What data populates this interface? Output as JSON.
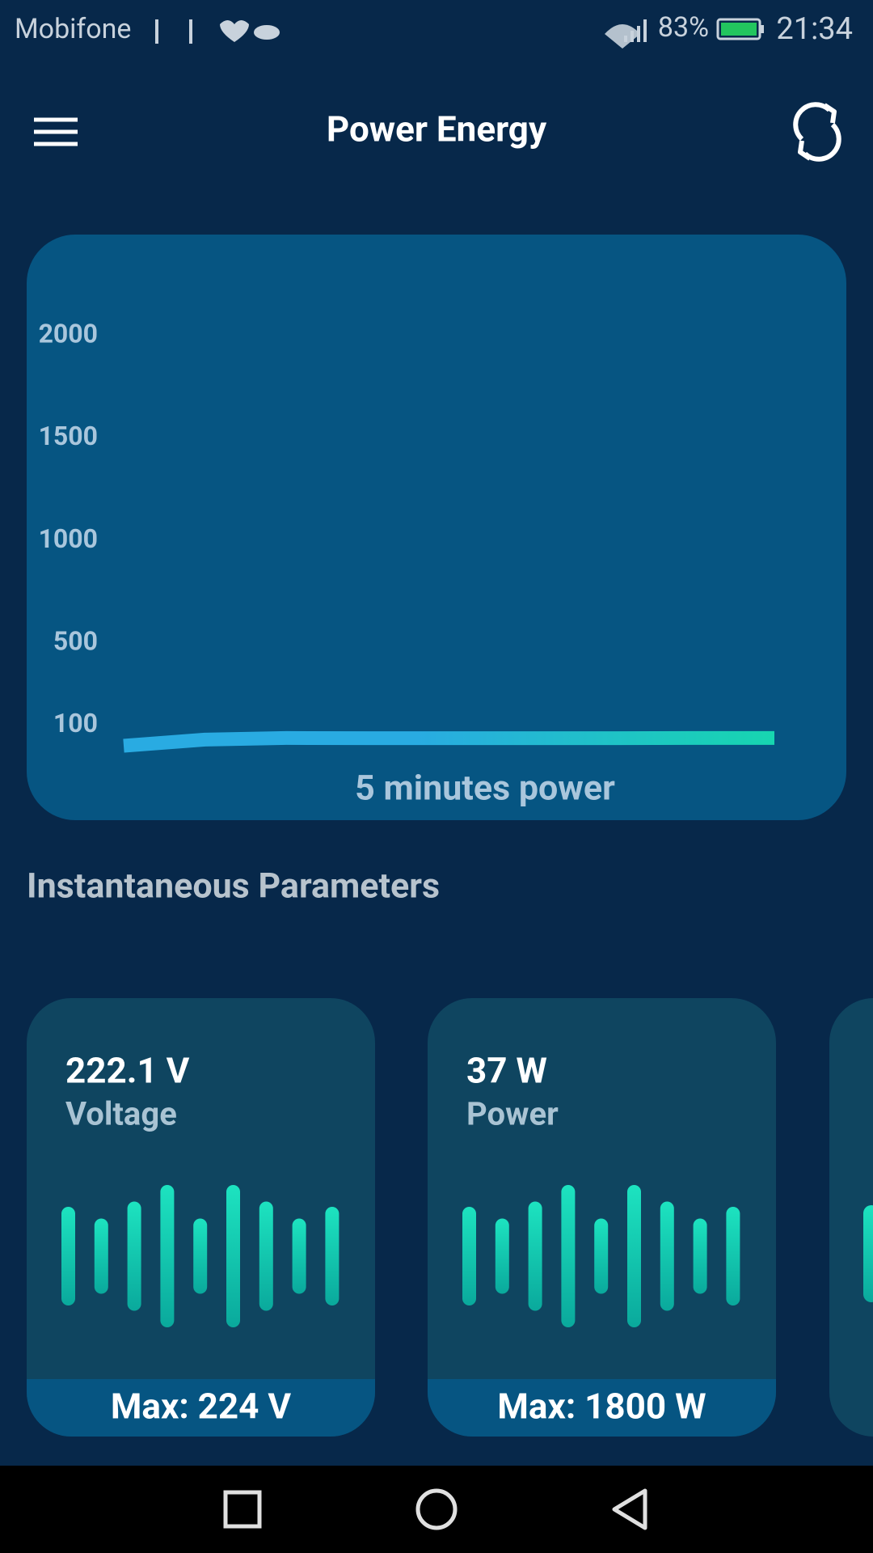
{
  "status_bar": {
    "carrier": "Mobifone",
    "battery": "83%",
    "time": "21:34"
  },
  "app_bar": {
    "title": "Power Energy"
  },
  "chart_data": {
    "type": "line",
    "x_label": "5 minutes power",
    "series": [
      {
        "color": "#29abe2",
        "values": [
          0,
          30,
          38,
          37,
          37,
          37,
          37,
          38,
          38
        ]
      }
    ],
    "ylim": [
      0,
      2000
    ],
    "yticks": [
      100,
      500,
      1000,
      1500,
      2000
    ]
  },
  "section": {
    "title": "Instantaneous Parameters"
  },
  "cards": [
    {
      "value": "222.1 V",
      "label": "Voltage",
      "max": "Max: 224  V"
    },
    {
      "value": "37 W",
      "label": "Power",
      "max": "Max: 1800  W"
    }
  ]
}
